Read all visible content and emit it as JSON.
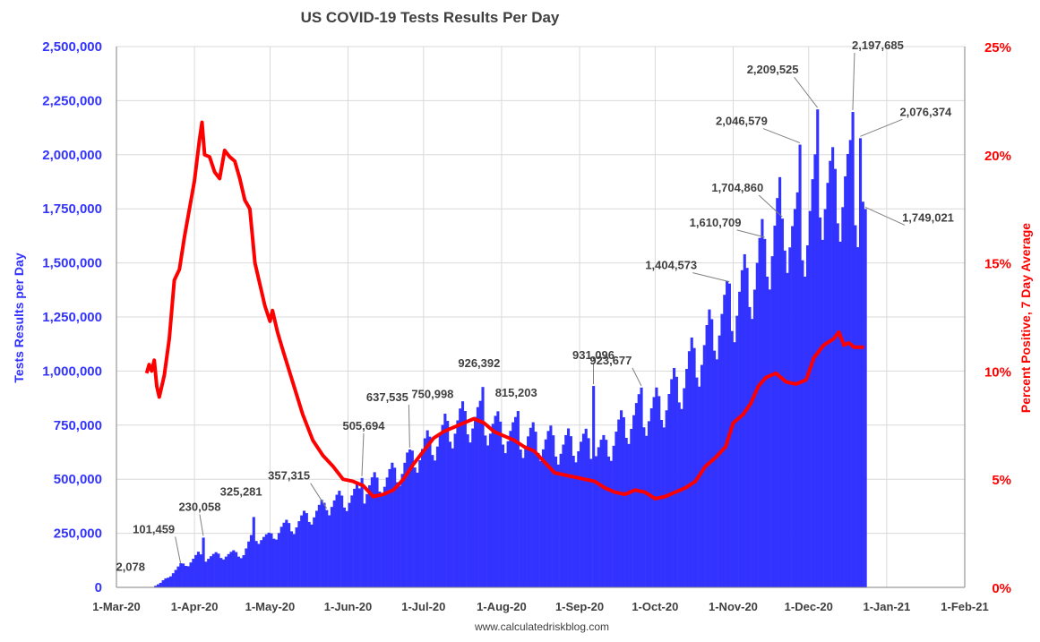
{
  "chart_data": {
    "type": "bar",
    "title": "US COVID-19 Tests Results Per Day",
    "footer": "www.calculatedriskblog.com",
    "ylabel": "Tests Results per Day",
    "y2label": "Percent Positive, 7 Day Average",
    "ylim": [
      0,
      2500000
    ],
    "y2lim": [
      0,
      25
    ],
    "xlim": [
      "2020-03-01",
      "2021-02-01"
    ],
    "grid": true,
    "colors": {
      "bars": "#3333ff",
      "line": "#ff0000",
      "left_axis": "#3333ff",
      "right_axis": "#ff0000",
      "grid": "#d9d9d9",
      "text": "#404040"
    },
    "ytick_labels": [
      "0",
      "250,000",
      "500,000",
      "750,000",
      "1,000,000",
      "1,250,000",
      "1,500,000",
      "1,750,000",
      "2,000,000",
      "2,250,000",
      "2,500,000"
    ],
    "y2tick_labels": [
      "0%",
      "5%",
      "10%",
      "15%",
      "20%",
      "25%"
    ],
    "xtick_labels": [
      "1-Mar-20",
      "1-Apr-20",
      "1-May-20",
      "1-Jun-20",
      "1-Jul-20",
      "1-Aug-20",
      "1-Sep-20",
      "1-Oct-20",
      "1-Nov-20",
      "1-Dec-20",
      "1-Jan-21",
      "1-Feb-21"
    ],
    "tests_series": {
      "name": "Tests Results per Day",
      "start": "2020-03-01",
      "anchors": [
        [
          "2020-03-01",
          0
        ],
        [
          "2020-03-10",
          0
        ],
        [
          "2020-03-15",
          2078
        ],
        [
          "2020-03-18",
          20000
        ],
        [
          "2020-03-22",
          60000
        ],
        [
          "2020-03-26",
          101459
        ],
        [
          "2020-03-29",
          115000
        ],
        [
          "2020-04-02",
          150000
        ],
        [
          "2020-04-05",
          140000
        ],
        [
          "2020-04-10",
          150000
        ],
        [
          "2020-04-15",
          155000
        ],
        [
          "2020-04-20",
          160000
        ],
        [
          "2020-04-24",
          240000
        ],
        [
          "2020-04-30",
          230000
        ],
        [
          "2020-05-05",
          280000
        ],
        [
          "2020-05-10",
          290000
        ],
        [
          "2020-05-15",
          330000
        ],
        [
          "2020-05-20",
          360000
        ],
        [
          "2020-05-25",
          400000
        ],
        [
          "2020-05-30",
          410000
        ],
        [
          "2020-06-05",
          440000
        ],
        [
          "2020-06-10",
          480000
        ],
        [
          "2020-06-15",
          500000
        ],
        [
          "2020-06-20",
          540000
        ],
        [
          "2020-06-25",
          600000
        ],
        [
          "2020-06-30",
          640000
        ],
        [
          "2020-07-05",
          690000
        ],
        [
          "2020-07-10",
          740000
        ],
        [
          "2020-07-15",
          780000
        ],
        [
          "2020-07-20",
          790000
        ],
        [
          "2020-07-25",
          780000
        ],
        [
          "2020-07-30",
          740000
        ],
        [
          "2020-08-05",
          720000
        ],
        [
          "2020-08-10",
          700000
        ],
        [
          "2020-08-15",
          690000
        ],
        [
          "2020-08-20",
          680000
        ],
        [
          "2020-08-25",
          660000
        ],
        [
          "2020-08-30",
          680000
        ],
        [
          "2020-09-05",
          660000
        ],
        [
          "2020-09-10",
          640000
        ],
        [
          "2020-09-15",
          720000
        ],
        [
          "2020-09-20",
          780000
        ],
        [
          "2020-09-25",
          820000
        ],
        [
          "2020-09-30",
          830000
        ],
        [
          "2020-10-05",
          880000
        ],
        [
          "2020-10-10",
          950000
        ],
        [
          "2020-10-15",
          1050000
        ],
        [
          "2020-10-20",
          1120000
        ],
        [
          "2020-10-25",
          1240000
        ],
        [
          "2020-10-30",
          1300000
        ],
        [
          "2020-11-05",
          1400000
        ],
        [
          "2020-11-10",
          1500000
        ],
        [
          "2020-11-15",
          1620000
        ],
        [
          "2020-11-20",
          1750000
        ],
        [
          "2020-11-25",
          1650000
        ],
        [
          "2020-11-30",
          1700000
        ],
        [
          "2020-12-05",
          1900000
        ],
        [
          "2020-12-10",
          1850000
        ],
        [
          "2020-12-15",
          1900000
        ],
        [
          "2020-12-20",
          1850000
        ],
        [
          "2020-12-23",
          1749021
        ]
      ],
      "peaks": [
        [
          "2020-04-24",
          325281
        ],
        [
          "2020-04-04",
          230058
        ],
        [
          "2020-06-06",
          505694
        ],
        [
          "2020-05-23",
          357315
        ],
        [
          "2020-06-25",
          637535
        ],
        [
          "2020-07-08",
          750998
        ],
        [
          "2020-07-24",
          926392
        ],
        [
          "2020-08-07",
          815203
        ],
        [
          "2020-09-06",
          931096
        ],
        [
          "2020-09-25",
          923677
        ],
        [
          "2020-10-30",
          1404573
        ],
        [
          "2020-11-13",
          1610709
        ],
        [
          "2020-11-20",
          1704860
        ],
        [
          "2020-11-27",
          2046579
        ],
        [
          "2020-12-04",
          2209525
        ],
        [
          "2020-12-18",
          2197685
        ],
        [
          "2020-12-21",
          2076374
        ]
      ]
    },
    "positivity_series": {
      "name": "Percent Positive, 7 Day Average",
      "points": [
        [
          "2020-03-13",
          9.9
        ],
        [
          "2020-03-14",
          10.3
        ],
        [
          "2020-03-15",
          10.0
        ],
        [
          "2020-03-16",
          10.5
        ],
        [
          "2020-03-17",
          9.3
        ],
        [
          "2020-03-18",
          8.8
        ],
        [
          "2020-03-20",
          9.8
        ],
        [
          "2020-03-22",
          11.5
        ],
        [
          "2020-03-24",
          14.2
        ],
        [
          "2020-03-26",
          14.7
        ],
        [
          "2020-03-28",
          16.2
        ],
        [
          "2020-03-30",
          17.5
        ],
        [
          "2020-04-01",
          18.8
        ],
        [
          "2020-04-03",
          20.7
        ],
        [
          "2020-04-04",
          21.5
        ],
        [
          "2020-04-05",
          20.0
        ],
        [
          "2020-04-07",
          19.9
        ],
        [
          "2020-04-09",
          19.2
        ],
        [
          "2020-04-11",
          18.9
        ],
        [
          "2020-04-13",
          20.2
        ],
        [
          "2020-04-15",
          19.9
        ],
        [
          "2020-04-17",
          19.7
        ],
        [
          "2020-04-19",
          18.9
        ],
        [
          "2020-04-21",
          17.9
        ],
        [
          "2020-04-23",
          17.5
        ],
        [
          "2020-04-25",
          15.0
        ],
        [
          "2020-04-27",
          14.0
        ],
        [
          "2020-04-29",
          13.0
        ],
        [
          "2020-05-01",
          12.3
        ],
        [
          "2020-05-02",
          12.8
        ],
        [
          "2020-05-04",
          11.8
        ],
        [
          "2020-05-06",
          11.0
        ],
        [
          "2020-05-10",
          9.5
        ],
        [
          "2020-05-14",
          8.0
        ],
        [
          "2020-05-18",
          6.8
        ],
        [
          "2020-05-22",
          6.1
        ],
        [
          "2020-05-26",
          5.6
        ],
        [
          "2020-05-30",
          5.0
        ],
        [
          "2020-06-03",
          4.9
        ],
        [
          "2020-06-07",
          4.7
        ],
        [
          "2020-06-11",
          4.2
        ],
        [
          "2020-06-15",
          4.3
        ],
        [
          "2020-06-19",
          4.5
        ],
        [
          "2020-06-23",
          5.0
        ],
        [
          "2020-06-27",
          5.7
        ],
        [
          "2020-07-01",
          6.3
        ],
        [
          "2020-07-05",
          6.9
        ],
        [
          "2020-07-09",
          7.2
        ],
        [
          "2020-07-13",
          7.4
        ],
        [
          "2020-07-17",
          7.6
        ],
        [
          "2020-07-21",
          7.8
        ],
        [
          "2020-07-25",
          7.6
        ],
        [
          "2020-07-29",
          7.2
        ],
        [
          "2020-08-02",
          7.0
        ],
        [
          "2020-08-06",
          6.8
        ],
        [
          "2020-08-10",
          6.5
        ],
        [
          "2020-08-14",
          6.3
        ],
        [
          "2020-08-18",
          5.8
        ],
        [
          "2020-08-22",
          5.3
        ],
        [
          "2020-08-26",
          5.2
        ],
        [
          "2020-08-30",
          5.1
        ],
        [
          "2020-09-03",
          5.0
        ],
        [
          "2020-09-07",
          4.9
        ],
        [
          "2020-09-11",
          4.6
        ],
        [
          "2020-09-15",
          4.4
        ],
        [
          "2020-09-19",
          4.3
        ],
        [
          "2020-09-23",
          4.5
        ],
        [
          "2020-09-27",
          4.4
        ],
        [
          "2020-10-01",
          4.1
        ],
        [
          "2020-10-05",
          4.2
        ],
        [
          "2020-10-09",
          4.4
        ],
        [
          "2020-10-13",
          4.6
        ],
        [
          "2020-10-17",
          4.9
        ],
        [
          "2020-10-21",
          5.6
        ],
        [
          "2020-10-25",
          6.0
        ],
        [
          "2020-10-29",
          6.5
        ],
        [
          "2020-11-01",
          7.6
        ],
        [
          "2020-11-05",
          8.0
        ],
        [
          "2020-11-08",
          8.5
        ],
        [
          "2020-11-11",
          9.3
        ],
        [
          "2020-11-14",
          9.7
        ],
        [
          "2020-11-18",
          9.9
        ],
        [
          "2020-11-22",
          9.5
        ],
        [
          "2020-11-26",
          9.4
        ],
        [
          "2020-11-30",
          9.6
        ],
        [
          "2020-12-03",
          10.6
        ],
        [
          "2020-12-07",
          11.2
        ],
        [
          "2020-12-11",
          11.5
        ],
        [
          "2020-12-13",
          11.8
        ],
        [
          "2020-12-15",
          11.2
        ],
        [
          "2020-12-17",
          11.3
        ],
        [
          "2020-12-19",
          11.1
        ],
        [
          "2020-12-23",
          11.1
        ]
      ]
    },
    "annotations": [
      {
        "label": "2,078",
        "date": "2020-03-15",
        "value": 2078
      },
      {
        "label": "101,459",
        "date": "2020-03-26",
        "value": 101459
      },
      {
        "label": "230,058",
        "date": "2020-04-04",
        "value": 230058
      },
      {
        "label": "325,281",
        "date": "2020-04-24",
        "value": 325281
      },
      {
        "label": "357,315",
        "date": "2020-05-23",
        "value": 357315
      },
      {
        "label": "505,694",
        "date": "2020-06-06",
        "value": 505694
      },
      {
        "label": "637,535",
        "date": "2020-06-25",
        "value": 637535
      },
      {
        "label": "750,998",
        "date": "2020-07-08",
        "value": 750998
      },
      {
        "label": "926,392",
        "date": "2020-07-24",
        "value": 926392
      },
      {
        "label": "815,203",
        "date": "2020-08-07",
        "value": 815203
      },
      {
        "label": "931,096",
        "date": "2020-09-06",
        "value": 931096
      },
      {
        "label": "923,677",
        "date": "2020-09-25",
        "value": 923677
      },
      {
        "label": "1,404,573",
        "date": "2020-10-30",
        "value": 1404573
      },
      {
        "label": "1,610,709",
        "date": "2020-11-13",
        "value": 1610709
      },
      {
        "label": "1,704,860",
        "date": "2020-11-20",
        "value": 1704860
      },
      {
        "label": "2,046,579",
        "date": "2020-11-27",
        "value": 2046579
      },
      {
        "label": "2,209,525",
        "date": "2020-12-04",
        "value": 2209525
      },
      {
        "label": "2,197,685",
        "date": "2020-12-18",
        "value": 2197685
      },
      {
        "label": "2,076,374",
        "date": "2020-12-21",
        "value": 2076374
      },
      {
        "label": "1,749,021",
        "date": "2020-12-23",
        "value": 1749021
      }
    ]
  }
}
